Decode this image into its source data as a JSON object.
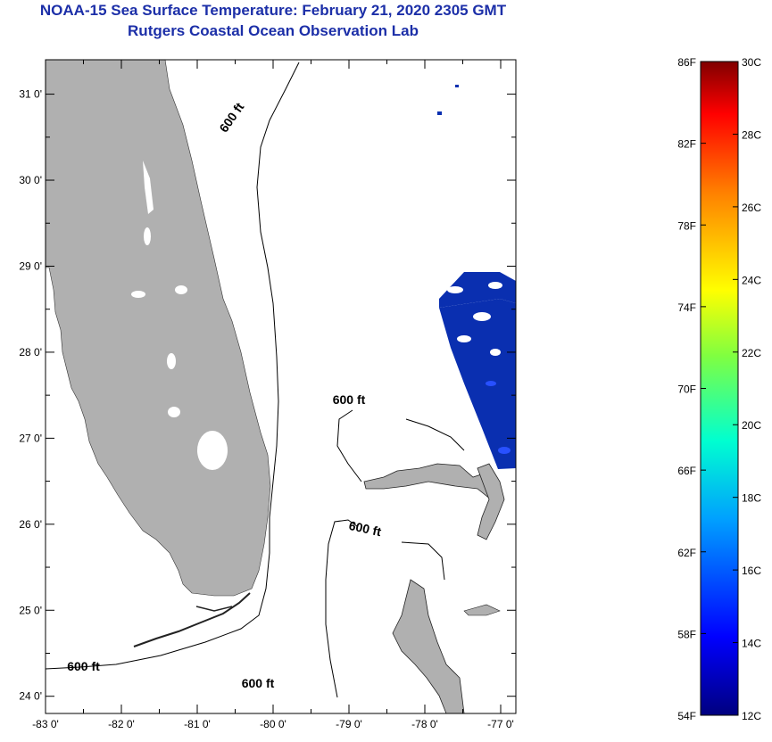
{
  "title": "NOAA-15 Sea Surface Temperature:  February 21, 2020 2305 GMT",
  "subtitle": "Rutgers Coastal Ocean Observation Lab",
  "colors": {
    "land": "#b0b0b0",
    "title": "#1c2fa8",
    "water": "#ffffff"
  },
  "map": {
    "lon_range": [
      -83,
      -76.8
    ],
    "lat_range": [
      23.8,
      31.4
    ],
    "lat_ticks": [
      {
        "lat": 31,
        "label": "31 0'"
      },
      {
        "lat": 30,
        "label": "30 0'"
      },
      {
        "lat": 29,
        "label": "29 0'"
      },
      {
        "lat": 28,
        "label": "28 0'"
      },
      {
        "lat": 27,
        "label": "27 0'"
      },
      {
        "lat": 26,
        "label": "26 0'"
      },
      {
        "lat": 25,
        "label": "25 0'"
      },
      {
        "lat": 24,
        "label": "24 0'"
      }
    ],
    "lon_ticks": [
      {
        "lon": -83,
        "label": "-83 0'"
      },
      {
        "lon": -82,
        "label": "-82 0'"
      },
      {
        "lon": -81,
        "label": "-81 0'"
      },
      {
        "lon": -80,
        "label": "-80 0'"
      },
      {
        "lon": -79,
        "label": "-79 0'"
      },
      {
        "lon": -78,
        "label": "-78 0'"
      },
      {
        "lon": -77,
        "label": "-77 0'"
      }
    ],
    "contours": [
      {
        "label": "600 ft",
        "lon": -80.5,
        "lat": 30.7,
        "rotate": -55
      },
      {
        "label": "600 ft",
        "lon": -79.0,
        "lat": 27.4,
        "rotate": 0
      },
      {
        "label": "600 ft",
        "lon": -78.8,
        "lat": 25.9,
        "rotate": 12
      },
      {
        "label": "600 ft",
        "lon": -82.5,
        "lat": 24.3,
        "rotate": 0
      },
      {
        "label": "600 ft",
        "lon": -80.2,
        "lat": 24.1,
        "rotate": 0
      }
    ]
  },
  "colorbar": {
    "f_labels": [
      "86F",
      "82F",
      "78F",
      "74F",
      "70F",
      "66F",
      "62F",
      "58F",
      "54F"
    ],
    "c_labels": [
      "30C",
      "28C",
      "26C",
      "24C",
      "22C",
      "20C",
      "18C",
      "16C",
      "14C",
      "12C"
    ],
    "f_range": [
      54,
      86
    ],
    "c_range": [
      12,
      30
    ]
  }
}
